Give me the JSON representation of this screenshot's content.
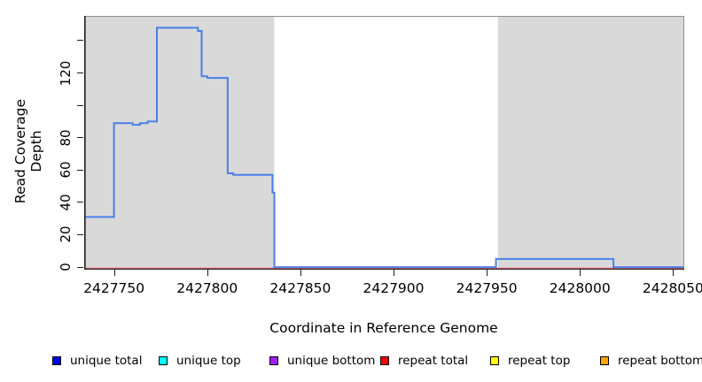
{
  "figure": {
    "ylabel": "Read Coverage Depth",
    "xlabel": "Coordinate in Reference Genome"
  },
  "chart_data": {
    "type": "line",
    "subtype": "step",
    "title": "",
    "xlabel": "Coordinate in Reference Genome",
    "ylabel": "Read Coverage Depth",
    "xlim": [
      2427734,
      2428056
    ],
    "ylim": [
      -1.6,
      155.3
    ],
    "grid": false,
    "legend_position": "bottom",
    "x_ticks": {
      "values": [
        2427750,
        2427800,
        2427850,
        2427900,
        2427950,
        2428000,
        2428050
      ],
      "labels": [
        "2427750",
        "2427800",
        "2427850",
        "2427900",
        "2427950",
        "2428000",
        "2428050"
      ]
    },
    "y_ticks": {
      "values": [
        0,
        20,
        40,
        60,
        80,
        100,
        120,
        140
      ],
      "labels": [
        "0",
        "20",
        "40",
        "60",
        "80",
        "",
        "120",
        ""
      ]
    },
    "background_shading": [
      {
        "x0": 2427734,
        "x1": 2427836,
        "color": "#d9d9d9"
      },
      {
        "x0": 2427956,
        "x1": 2428056,
        "color": "#d9d9d9"
      }
    ],
    "series": [
      {
        "name": "unique total",
        "draw_color": "#4a80e8",
        "steps": [
          [
            2427734,
            2427750,
            31
          ],
          [
            2427750,
            2427760,
            89
          ],
          [
            2427760,
            2427764,
            88
          ],
          [
            2427764,
            2427768,
            89
          ],
          [
            2427768,
            2427773,
            90
          ],
          [
            2427773,
            2427795,
            148
          ],
          [
            2427795,
            2427797,
            146
          ],
          [
            2427797,
            2427800,
            118
          ],
          [
            2427800,
            2427811,
            117
          ],
          [
            2427811,
            2427814,
            58
          ],
          [
            2427814,
            2427835,
            57
          ],
          [
            2427835,
            2427836,
            46
          ],
          [
            2427836,
            2427955,
            0
          ],
          [
            2427955,
            2428018,
            5
          ],
          [
            2428018,
            2428056,
            0
          ]
        ]
      },
      {
        "name": "repeat total",
        "draw_color": "#e8566c",
        "steps": [
          [
            2427734,
            2428056,
            0
          ]
        ]
      }
    ],
    "legend_entries": [
      {
        "label": "unique total",
        "color": "#0000ff"
      },
      {
        "label": "unique top",
        "color": "#00ffff"
      },
      {
        "label": "unique bottom",
        "color": "#a020f0"
      },
      {
        "label": "repeat total",
        "color": "#ff0000"
      },
      {
        "label": "repeat top",
        "color": "#ffff00"
      },
      {
        "label": "repeat bottom",
        "color": "#ffa500"
      }
    ]
  }
}
